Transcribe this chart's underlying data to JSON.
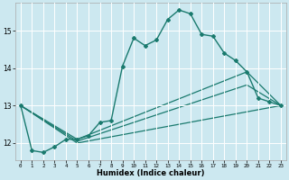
{
  "xlabel": "Humidex (Indice chaleur)",
  "ylabel": "",
  "bg_color": "#cce8f0",
  "grid_color": "#ffffff",
  "line_color": "#1a7a6e",
  "xlim": [
    -0.5,
    23.5
  ],
  "ylim": [
    11.55,
    15.75
  ],
  "yticks": [
    12,
    13,
    14,
    15
  ],
  "xticks": [
    0,
    1,
    2,
    3,
    4,
    5,
    6,
    7,
    8,
    9,
    10,
    11,
    12,
    13,
    14,
    15,
    16,
    17,
    18,
    19,
    20,
    21,
    22,
    23
  ],
  "lines": [
    {
      "x": [
        0,
        1,
        2,
        3,
        4,
        5,
        6,
        7,
        8,
        9,
        10,
        11,
        12,
        13,
        14,
        15,
        16,
        17,
        18,
        19,
        20,
        21,
        22,
        23
      ],
      "y": [
        13.0,
        11.8,
        11.75,
        11.9,
        12.1,
        12.1,
        12.2,
        12.55,
        12.6,
        14.05,
        14.8,
        14.6,
        14.75,
        15.3,
        15.55,
        15.45,
        14.9,
        14.85,
        14.4,
        14.2,
        13.9,
        13.2,
        13.1,
        13.0
      ],
      "marker": "D",
      "markersize": 2.0,
      "linewidth": 1.0,
      "linestyle": "-"
    },
    {
      "x": [
        0,
        5,
        20,
        23
      ],
      "y": [
        13.0,
        12.1,
        13.9,
        13.0
      ],
      "marker": null,
      "markersize": 0,
      "linewidth": 0.9,
      "linestyle": "-"
    },
    {
      "x": [
        0,
        5,
        20,
        23
      ],
      "y": [
        13.0,
        12.05,
        13.55,
        13.0
      ],
      "marker": null,
      "markersize": 0,
      "linewidth": 0.9,
      "linestyle": "-"
    },
    {
      "x": [
        0,
        5,
        23
      ],
      "y": [
        13.0,
        12.0,
        13.0
      ],
      "marker": null,
      "markersize": 0,
      "linewidth": 0.9,
      "linestyle": "-"
    }
  ]
}
